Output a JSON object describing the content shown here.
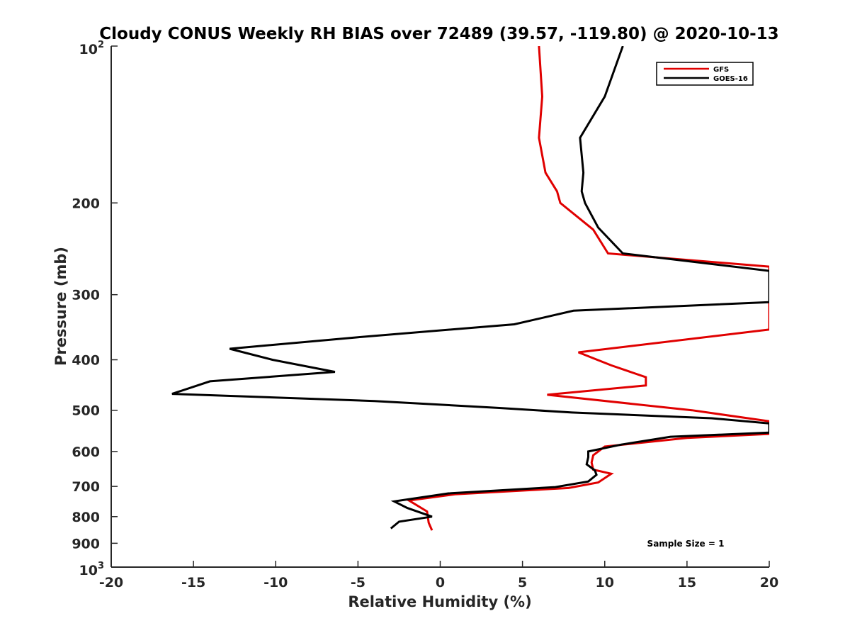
{
  "chart_data": {
    "type": "line",
    "title": "Cloudy CONUS Weekly RH BIAS over 72489 (39.57, -119.80) @ 2020-10-13",
    "xlabel": "Relative Humidity (%)",
    "ylabel": "Pressure (mb)",
    "xlim": [
      -20,
      20
    ],
    "ylim": [
      100,
      1000
    ],
    "yscale": "log",
    "yreversed": true,
    "grid": false,
    "legend_position": "top-right",
    "x_ticks": [
      "-20",
      "-15",
      "-10",
      "-5",
      "0",
      "5",
      "10",
      "15",
      "20"
    ],
    "y_ticks": [
      {
        "value": 100,
        "base": "10",
        "exp": "2"
      },
      {
        "value": 200,
        "label": "200"
      },
      {
        "value": 300,
        "label": "300"
      },
      {
        "value": 400,
        "label": "400"
      },
      {
        "value": 500,
        "label": "500"
      },
      {
        "value": 600,
        "label": "600"
      },
      {
        "value": 700,
        "label": "700"
      },
      {
        "value": 800,
        "label": "800"
      },
      {
        "value": 900,
        "label": "900"
      },
      {
        "value": 1000,
        "base": "10",
        "exp": "3"
      }
    ],
    "annotation": "Sample Size = 1",
    "series": [
      {
        "name": "GFS",
        "color": "#e00000",
        "points": [
          [
            6.0,
            100
          ],
          [
            6.2,
            125
          ],
          [
            6.0,
            150
          ],
          [
            6.4,
            175
          ],
          [
            7.1,
            190
          ],
          [
            7.3,
            200
          ],
          [
            9.3,
            225
          ],
          [
            10.2,
            250
          ],
          [
            20.0,
            265
          ],
          [
            20.0,
            350
          ],
          [
            8.4,
            387
          ],
          [
            10.4,
            410
          ],
          [
            12.5,
            432
          ],
          [
            12.5,
            448
          ],
          [
            6.5,
            467
          ],
          [
            15.3,
            500
          ],
          [
            20.0,
            525
          ],
          [
            20.0,
            555
          ],
          [
            15.0,
            565
          ],
          [
            10.0,
            587
          ],
          [
            9.3,
            610
          ],
          [
            9.2,
            630
          ],
          [
            9.3,
            650
          ],
          [
            10.4,
            662
          ],
          [
            9.6,
            688
          ],
          [
            7.8,
            705
          ],
          [
            0.9,
            725
          ],
          [
            -1.9,
            745
          ],
          [
            -0.8,
            782
          ],
          [
            -0.7,
            822
          ],
          [
            -0.5,
            850
          ]
        ]
      },
      {
        "name": "GOES-16",
        "color": "#000000",
        "points": [
          [
            11.1,
            100
          ],
          [
            10.0,
            125
          ],
          [
            8.5,
            150
          ],
          [
            8.7,
            175
          ],
          [
            8.6,
            190
          ],
          [
            8.8,
            200
          ],
          [
            9.6,
            223
          ],
          [
            11.1,
            250
          ],
          [
            20.0,
            270
          ],
          [
            20.0,
            310
          ],
          [
            8.1,
            322
          ],
          [
            4.5,
            342
          ],
          [
            -5.0,
            362
          ],
          [
            -12.8,
            381
          ],
          [
            -10.2,
            400
          ],
          [
            -6.4,
            422
          ],
          [
            -14.0,
            440
          ],
          [
            -16.3,
            465
          ],
          [
            -4.0,
            480
          ],
          [
            3.6,
            495
          ],
          [
            8.0,
            505
          ],
          [
            16.5,
            518
          ],
          [
            20.0,
            530
          ],
          [
            20.0,
            552
          ],
          [
            14.0,
            562
          ],
          [
            11.0,
            582
          ],
          [
            9.0,
            600
          ],
          [
            9.0,
            615
          ],
          [
            8.9,
            635
          ],
          [
            9.4,
            652
          ],
          [
            9.5,
            665
          ],
          [
            9.0,
            685
          ],
          [
            7.0,
            702
          ],
          [
            0.5,
            722
          ],
          [
            -2.8,
            748
          ],
          [
            -2.0,
            770
          ],
          [
            -0.5,
            800
          ],
          [
            -2.5,
            818
          ],
          [
            -3.0,
            843
          ]
        ]
      }
    ]
  }
}
